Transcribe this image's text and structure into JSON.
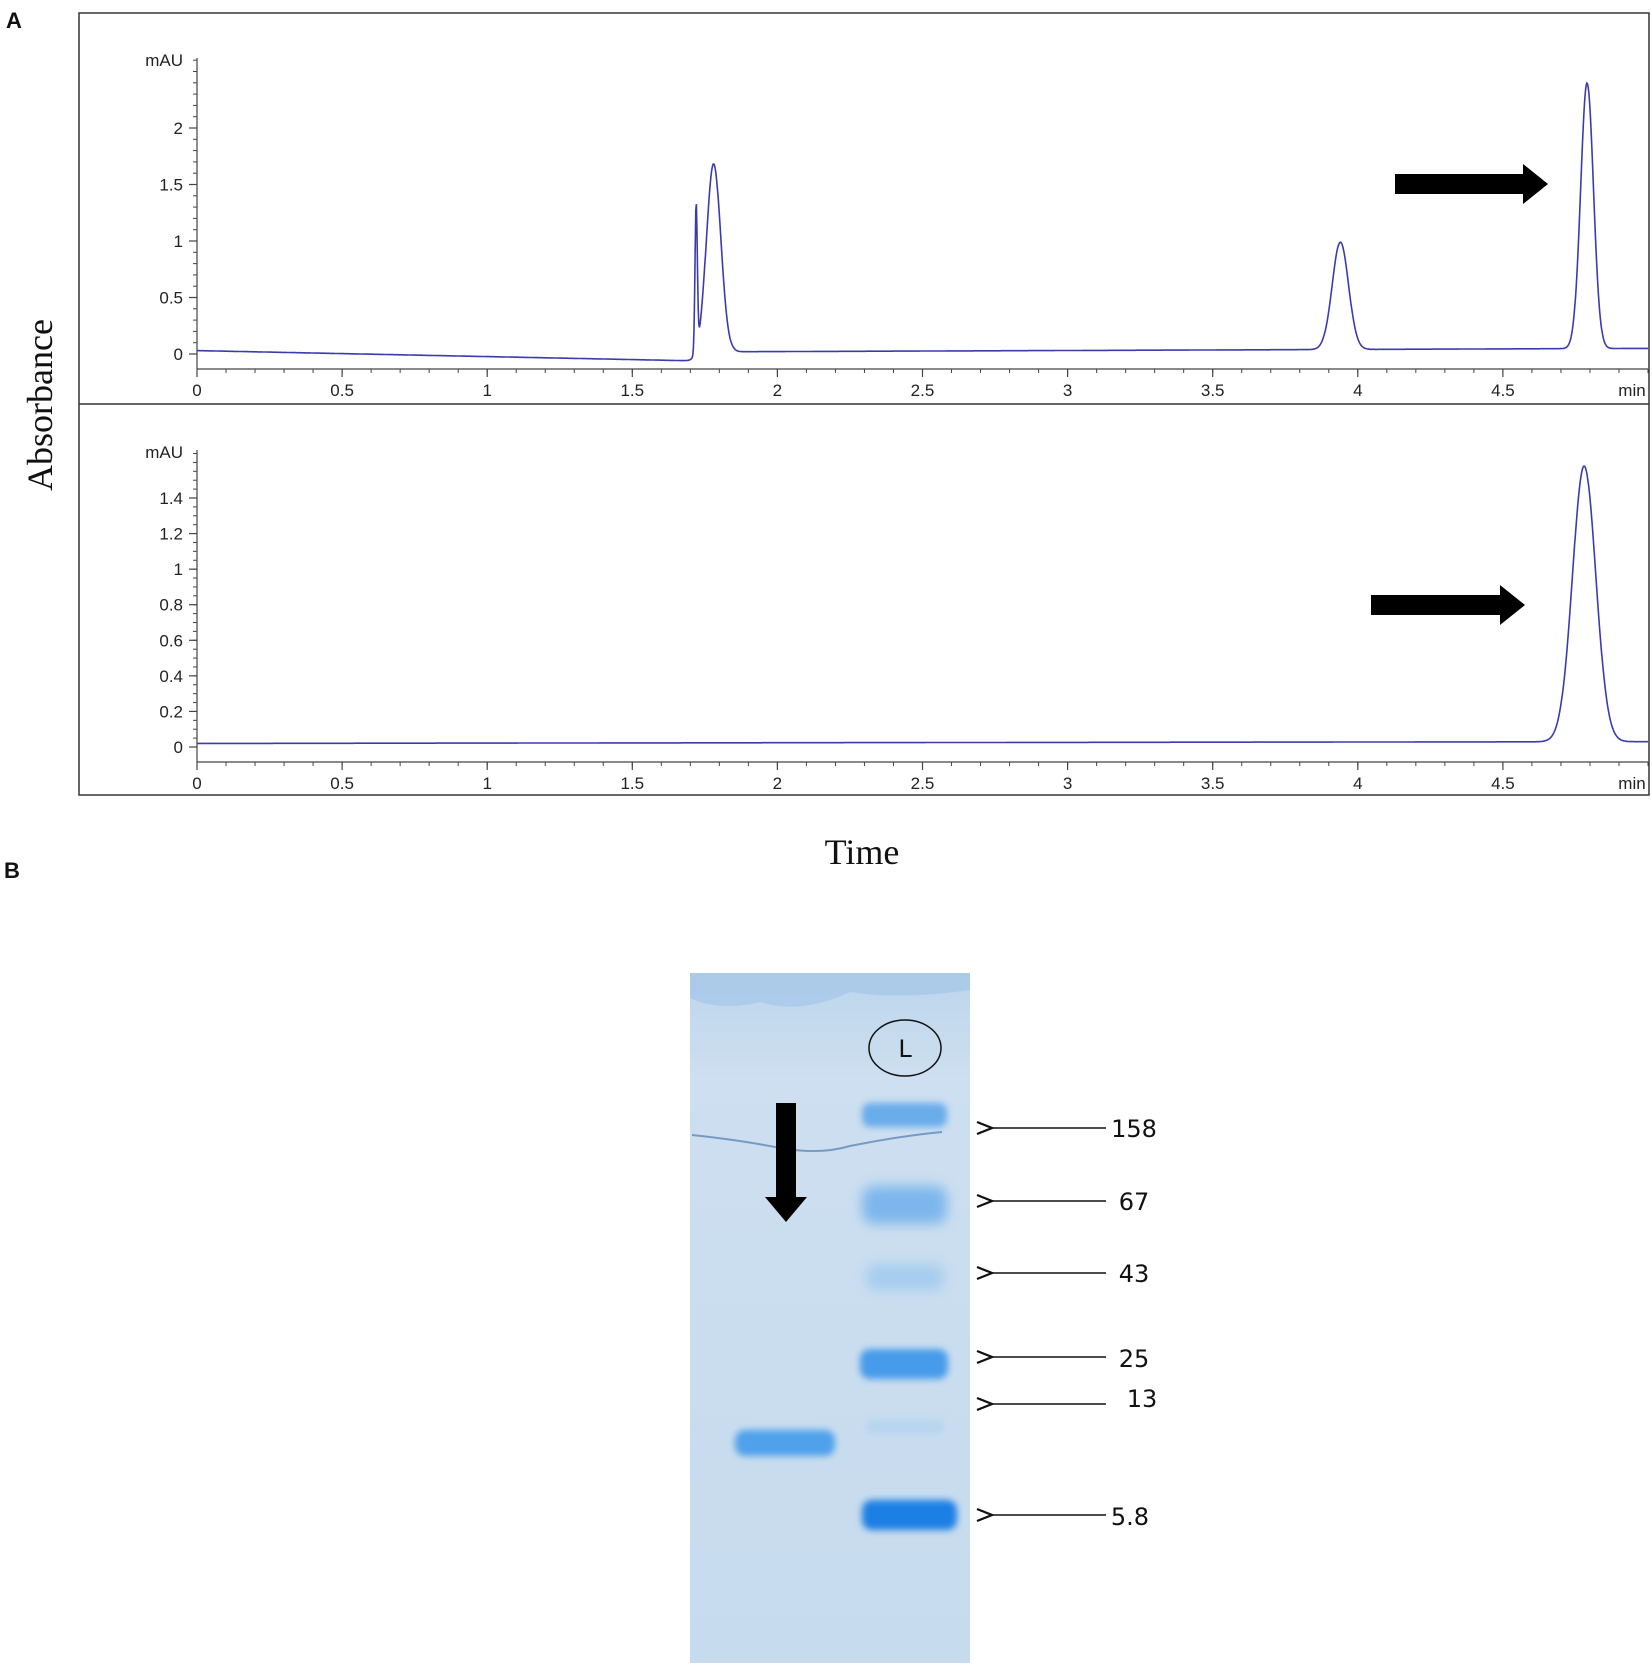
{
  "panel_a_label": "A",
  "panel_b_label": "B",
  "colors": {
    "trace": "#3b3bb0",
    "arrow": "#000000",
    "gel": "#c9dcef",
    "band": "#2f8ee6"
  },
  "chart_data": [
    {
      "type": "line",
      "title": "",
      "xlabel": "Time",
      "ylabel": "Absorbance",
      "x_unit": "min",
      "y_unit": "mAU",
      "xlim": [
        0,
        5
      ],
      "ylim": [
        -0.1,
        2.6
      ],
      "x_ticks": [
        0,
        0.5,
        1,
        1.5,
        2,
        2.5,
        3,
        3.5,
        4,
        4.5
      ],
      "x_tick_labels": [
        "0",
        "0.5",
        "1",
        "1.5",
        "2",
        "2.5",
        "3",
        "3.5",
        "4",
        "4.5"
      ],
      "y_ticks": [
        0,
        0.5,
        1,
        1.5,
        2
      ],
      "y_tick_labels": [
        "0",
        "0.5",
        "1",
        "1.5",
        "2"
      ],
      "grid": false,
      "baseline": [
        [
          0,
          0.03
        ],
        [
          1.7,
          -0.06
        ],
        [
          1.85,
          0.02
        ],
        [
          5,
          0.05
        ]
      ],
      "peaks": [
        {
          "rt": 1.72,
          "height": 1.3,
          "width": 0.004
        },
        {
          "rt": 1.78,
          "height": 1.7,
          "width": 0.025
        },
        {
          "rt": 3.94,
          "height": 0.95,
          "width": 0.028
        },
        {
          "rt": 4.79,
          "height": 2.35,
          "width": 0.022
        }
      ],
      "annotations": [
        {
          "type": "arrow",
          "points_to_rt": 4.79
        }
      ]
    },
    {
      "type": "line",
      "title": "",
      "xlabel": "Time",
      "ylabel": "Absorbance",
      "x_unit": "min",
      "y_unit": "mAU",
      "xlim": [
        0,
        5
      ],
      "ylim": [
        -0.05,
        1.6
      ],
      "x_ticks": [
        0,
        0.5,
        1,
        1.5,
        2,
        2.5,
        3,
        3.5,
        4,
        4.5
      ],
      "x_tick_labels": [
        "0",
        "0.5",
        "1",
        "1.5",
        "2",
        "2.5",
        "3",
        "3.5",
        "4",
        "4.5"
      ],
      "y_ticks": [
        0,
        0.2,
        0.4,
        0.6,
        0.8,
        1,
        1.2,
        1.4
      ],
      "y_tick_labels": [
        "0",
        "0.2",
        "0.4",
        "0.6",
        "0.8",
        "1",
        "1.2",
        "1.4"
      ],
      "grid": false,
      "baseline": [
        [
          0,
          0.02
        ],
        [
          5,
          0.03
        ]
      ],
      "peaks": [
        {
          "rt": 4.78,
          "height": 1.55,
          "width": 0.04
        }
      ],
      "annotations": [
        {
          "type": "arrow",
          "points_to_rt": 4.78
        }
      ]
    }
  ],
  "gel": {
    "ladder_label": "L",
    "ladder_kda": [
      "158",
      "67",
      "43",
      "25",
      "13",
      "5.8"
    ]
  }
}
